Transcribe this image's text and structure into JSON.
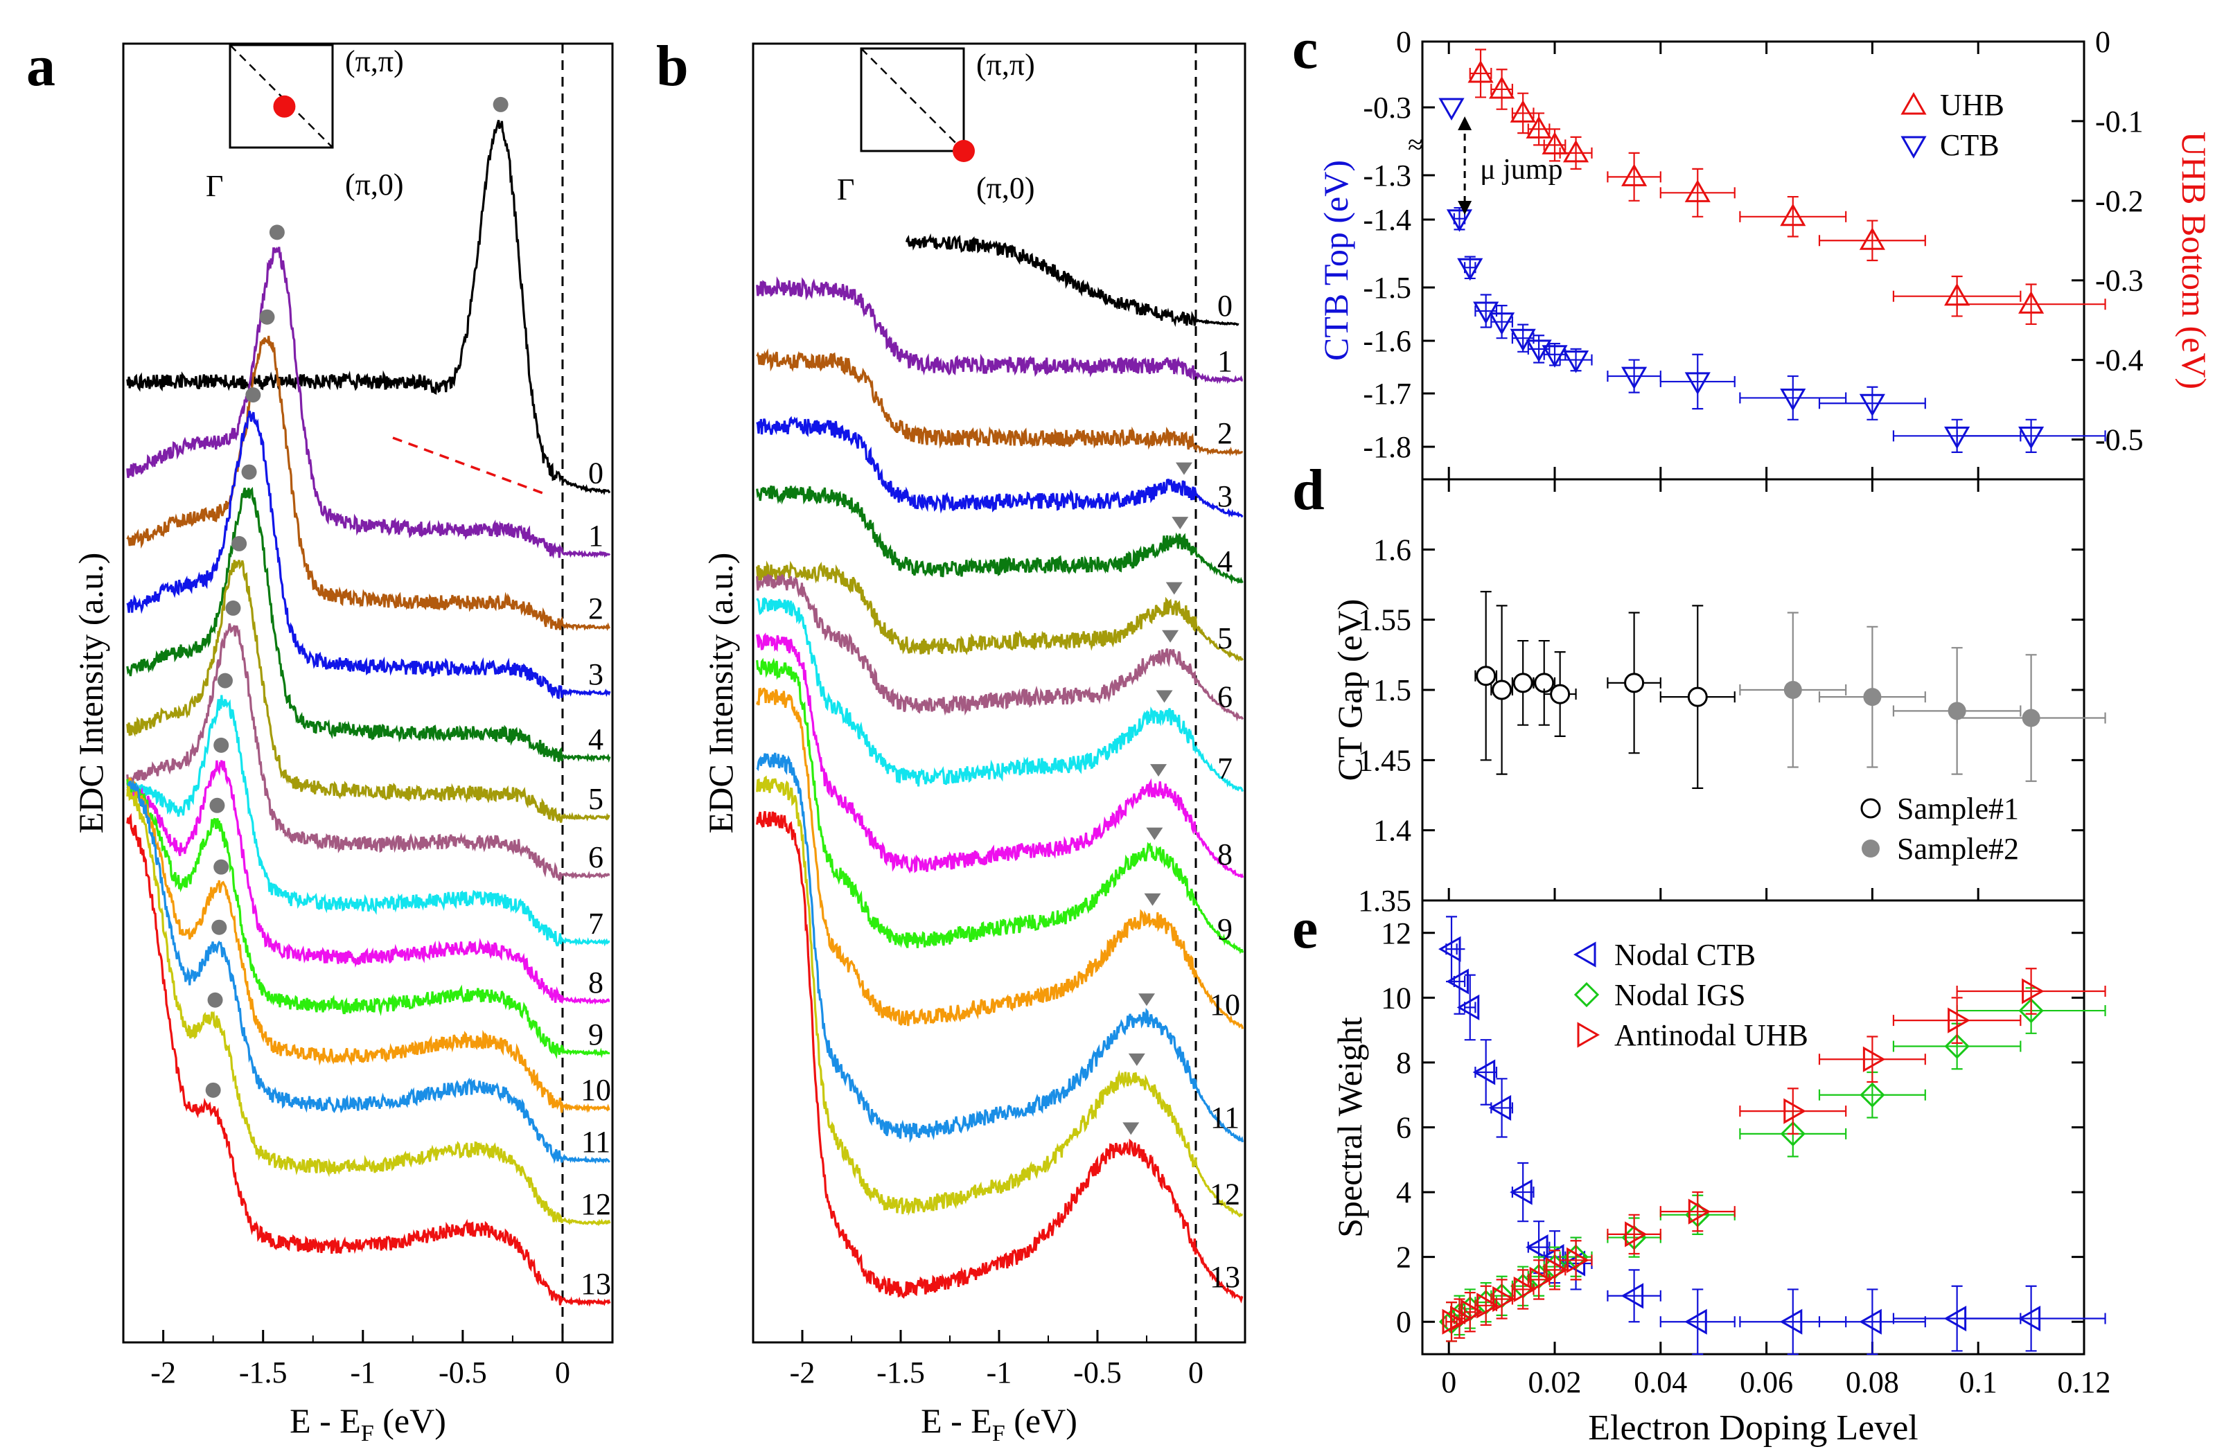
{
  "colors": {
    "edc": [
      "#000000",
      "#7f1fa8",
      "#b25a0e",
      "#1015e8",
      "#0a7a10",
      "#a49b0a",
      "#a45a82",
      "#12e4ee",
      "#ee10ee",
      "#2cee0c",
      "#f59a0a",
      "#1a8ee6",
      "#c8c80e",
      "#ee1010"
    ],
    "marker": "#777777",
    "ctb": "#1010d8",
    "uhb": "#e81010",
    "igs": "#18c818",
    "sample2": "#8a8a8a"
  },
  "chart_data": [
    {
      "id": "a",
      "panel_label": "a",
      "type": "line",
      "xlabel": "E - E",
      "xlabel_sub": "F",
      "xlabel_tail": " (eV)",
      "ylabel": "EDC Intensity (a.u.)",
      "xlim": [
        -2.2,
        0.25
      ],
      "x_ticks": [
        -2,
        -1.5,
        -1,
        -0.5,
        0
      ],
      "x_tick_labels": [
        "-2",
        "-1.5",
        "-1",
        "-0.5",
        "0"
      ],
      "fermi_line": 0,
      "inset": {
        "label_pipi": "(π,π)",
        "label_pi0": "(π,0)",
        "label_gamma": "Γ",
        "dot_position": "diagonal-center"
      },
      "curve_labels": [
        "0",
        "1",
        "2",
        "3",
        "4",
        "5",
        "6",
        "7",
        "8",
        "9",
        "10",
        "11",
        "12",
        "13"
      ],
      "peak_energies": [
        -0.31,
        -1.43,
        -1.48,
        -1.55,
        -1.57,
        -1.62,
        -1.65,
        -1.69,
        -1.71,
        -1.73,
        -1.71,
        -1.72,
        -1.74,
        -1.75
      ],
      "curves": [
        {
          "label": "0",
          "peak": -0.31,
          "baseline": 1.0,
          "hump": 0
        },
        {
          "label": "1",
          "peak": -1.43,
          "baseline": 1.0,
          "hump": 0
        },
        {
          "label": "2",
          "peak": -1.48,
          "baseline": 1.0,
          "hump": 0
        },
        {
          "label": "3",
          "peak": -1.55,
          "baseline": 1.0,
          "hump": 0
        },
        {
          "label": "4",
          "peak": -1.57,
          "baseline": 1.0,
          "hump": 0
        },
        {
          "label": "5",
          "peak": -1.62,
          "baseline": 1.0,
          "hump": 0
        },
        {
          "label": "6",
          "peak": -1.65,
          "baseline": 1.0,
          "hump": 0.2
        },
        {
          "label": "7",
          "peak": -1.69,
          "baseline": 1.0,
          "hump": 0.4
        },
        {
          "label": "8",
          "peak": -1.71,
          "baseline": 1.0,
          "hump": 0.6
        },
        {
          "label": "9",
          "peak": -1.73,
          "baseline": 1.0,
          "hump": 0.7
        },
        {
          "label": "10",
          "peak": -1.71,
          "baseline": 1.0,
          "hump": 0.9
        },
        {
          "label": "11",
          "peak": -1.72,
          "baseline": 1.0,
          "hump": 1.0
        },
        {
          "label": "12",
          "peak": -1.74,
          "baseline": 1.0,
          "hump": 1.0
        },
        {
          "label": "13",
          "peak": -1.75,
          "baseline": 1.0,
          "hump": 1.0
        }
      ]
    },
    {
      "id": "b",
      "panel_label": "b",
      "type": "line",
      "xlabel": "E - E",
      "xlabel_sub": "F",
      "xlabel_tail": " (eV)",
      "ylabel": "EDC Intensity (a.u.)",
      "xlim": [
        -2.25,
        0.25
      ],
      "x_ticks": [
        -2,
        -1.5,
        -1,
        -0.5,
        0
      ],
      "x_tick_labels": [
        "-2",
        "-1.5",
        "-1",
        "-0.5",
        "0"
      ],
      "fermi_line": 0,
      "inset": {
        "label_pipi": "(π,π)",
        "label_pi0": "(π,0)",
        "label_gamma": "Γ",
        "dot_position": "corner-pi0"
      },
      "curve_labels": [
        "0",
        "1",
        "2",
        "3",
        "4",
        "5",
        "6",
        "7",
        "8",
        "9",
        "10",
        "11",
        "12",
        "13"
      ],
      "triangle_energies": [
        null,
        null,
        null,
        -0.06,
        -0.08,
        -0.11,
        -0.13,
        -0.16,
        -0.19,
        -0.21,
        -0.22,
        -0.25,
        -0.3,
        -0.33
      ]
    },
    {
      "id": "c",
      "panel_label": "c",
      "type": "scatter",
      "xlim": [
        -0.005,
        0.12
      ],
      "ylabel": "CTB Top (eV)",
      "ylabel_right": "UHB Bottom (eV)",
      "left_tick_labels": [
        "0",
        "-0.3",
        "-1.3",
        "-1.4",
        "-1.5",
        "-1.6",
        "-1.7",
        "-1.8"
      ],
      "right_ylim": [
        -0.55,
        0
      ],
      "right_ticks": [
        0,
        -0.1,
        -0.2,
        -0.3,
        -0.4,
        -0.5
      ],
      "right_tick_labels": [
        "0",
        "-0.1",
        "-0.2",
        "-0.3",
        "-0.4",
        "-0.5"
      ],
      "annotation": "μ jump",
      "break_mark": "≈",
      "legend_position": "top-right",
      "series": [
        {
          "name": "UHB",
          "axis": "right",
          "marker": "triangle-up",
          "color": "#e81010",
          "x": [
            0.006,
            0.01,
            0.014,
            0.017,
            0.02,
            0.024,
            0.035,
            0.047,
            0.065,
            0.08,
            0.096,
            0.11
          ],
          "y": [
            -0.04,
            -0.06,
            -0.09,
            -0.11,
            -0.13,
            -0.14,
            -0.17,
            -0.19,
            -0.22,
            -0.25,
            -0.32,
            -0.33
          ],
          "xerr": [
            0.002,
            0.002,
            0.002,
            0.002,
            0.002,
            0.003,
            0.005,
            0.007,
            0.01,
            0.01,
            0.012,
            0.014
          ],
          "yerr": [
            0.03,
            0.025,
            0.025,
            0.02,
            0.02,
            0.02,
            0.03,
            0.03,
            0.025,
            0.025,
            0.025,
            0.025
          ]
        },
        {
          "name": "CTB",
          "axis": "left",
          "marker": "triangle-down",
          "color": "#1010d8",
          "x": [
            0.0005,
            0.002,
            0.004,
            0.007,
            0.01,
            0.014,
            0.017,
            0.02,
            0.024,
            0.035,
            0.047,
            0.065,
            0.08,
            0.096,
            0.11
          ],
          "y": [
            -0.3,
            -1.38,
            -1.47,
            -1.55,
            -1.57,
            -1.6,
            -1.62,
            -1.63,
            -1.64,
            -1.67,
            -1.68,
            -1.71,
            -1.72,
            -1.78,
            -1.78
          ],
          "xerr": [
            0,
            0.001,
            0.001,
            0.002,
            0.002,
            0.002,
            0.002,
            0.002,
            0.003,
            0.005,
            0.007,
            0.01,
            0.01,
            0.012,
            0.014
          ],
          "yerr": [
            0,
            0.02,
            0.02,
            0.03,
            0.03,
            0.025,
            0.025,
            0.02,
            0.02,
            0.03,
            0.05,
            0.04,
            0.03,
            0.03,
            0.03
          ]
        }
      ]
    },
    {
      "id": "d",
      "panel_label": "d",
      "type": "scatter",
      "xlim": [
        -0.005,
        0.12
      ],
      "ylim": [
        1.35,
        1.65
      ],
      "ylabel": "CT Gap (eV)",
      "y_ticks": [
        1.35,
        1.4,
        1.45,
        1.5,
        1.55,
        1.6
      ],
      "y_tick_labels": [
        "1.35",
        "1.4",
        "1.45",
        "1.5",
        "1.55",
        "1.6"
      ],
      "legend_position": "bottom-right",
      "series": [
        {
          "name": "Sample#1",
          "marker": "circle-open",
          "color": "#000000",
          "x": [
            0.007,
            0.01,
            0.014,
            0.018,
            0.021,
            0.035,
            0.047
          ],
          "y": [
            1.51,
            1.5,
            1.505,
            1.505,
            1.497,
            1.505,
            1.495
          ],
          "xerr": [
            0.002,
            0.002,
            0.002,
            0.002,
            0.003,
            0.005,
            0.007
          ],
          "yerr": [
            0.06,
            0.06,
            0.03,
            0.03,
            0.03,
            0.05,
            0.065
          ]
        },
        {
          "name": "Sample#2",
          "marker": "circle-filled",
          "color": "#8a8a8a",
          "x": [
            0.065,
            0.08,
            0.096,
            0.11
          ],
          "y": [
            1.5,
            1.495,
            1.485,
            1.48
          ],
          "xerr": [
            0.01,
            0.01,
            0.012,
            0.014
          ],
          "yerr": [
            0.055,
            0.05,
            0.045,
            0.045
          ]
        }
      ]
    },
    {
      "id": "e",
      "panel_label": "e",
      "type": "scatter",
      "xlim": [
        -0.005,
        0.12
      ],
      "ylim": [
        -1,
        13
      ],
      "xlabel": "Electron Doping Level",
      "ylabel": "Spectral Weight",
      "x_ticks": [
        0,
        0.02,
        0.04,
        0.06,
        0.08,
        0.1,
        0.12
      ],
      "x_tick_labels": [
        "0",
        "0.02",
        "0.04",
        "0.06",
        "0.08",
        "0.1",
        "0.12"
      ],
      "y_ticks": [
        0,
        2,
        4,
        6,
        8,
        10,
        12
      ],
      "y_tick_labels": [
        "0",
        "2",
        "4",
        "6",
        "8",
        "10",
        "12"
      ],
      "legend_position": "top-left",
      "series": [
        {
          "name": "Nodal CTB",
          "marker": "triangle-left",
          "color": "#1010d8",
          "x": [
            0.0005,
            0.002,
            0.004,
            0.007,
            0.01,
            0.014,
            0.017,
            0.02,
            0.024,
            0.035,
            0.047,
            0.065,
            0.08,
            0.096,
            0.11
          ],
          "y": [
            11.5,
            10.5,
            9.7,
            7.7,
            6.6,
            4.0,
            2.3,
            2.0,
            1.8,
            0.8,
            0.0,
            0.0,
            0.0,
            0.1,
            0.1
          ],
          "xerr": [
            0.001,
            0.001,
            0.001,
            0.002,
            0.002,
            0.002,
            0.002,
            0.002,
            0.003,
            0.005,
            0.007,
            0.01,
            0.01,
            0.012,
            0.014
          ],
          "yerr": [
            1.0,
            1.0,
            1.0,
            1.0,
            0.9,
            0.9,
            0.8,
            0.8,
            0.8,
            0.8,
            1.0,
            1.0,
            1.0,
            1.0,
            1.0
          ]
        },
        {
          "name": "Nodal IGS",
          "marker": "diamond",
          "color": "#18c818",
          "x": [
            0.0005,
            0.002,
            0.004,
            0.007,
            0.01,
            0.014,
            0.017,
            0.02,
            0.024,
            0.035,
            0.047,
            0.065,
            0.08,
            0.096,
            0.11
          ],
          "y": [
            0.0,
            0.2,
            0.4,
            0.6,
            0.8,
            1.1,
            1.4,
            1.7,
            2.0,
            2.6,
            3.3,
            5.8,
            7.0,
            8.5,
            9.6
          ],
          "xerr": [
            0.001,
            0.001,
            0.001,
            0.002,
            0.002,
            0.002,
            0.002,
            0.002,
            0.003,
            0.005,
            0.007,
            0.01,
            0.01,
            0.012,
            0.014
          ],
          "yerr": [
            0.6,
            0.6,
            0.6,
            0.6,
            0.6,
            0.6,
            0.6,
            0.6,
            0.6,
            0.6,
            0.6,
            0.7,
            0.7,
            0.7,
            0.7
          ]
        },
        {
          "name": "Antinodal UHB",
          "marker": "triangle-right",
          "color": "#e81010",
          "x": [
            0.0005,
            0.002,
            0.004,
            0.007,
            0.01,
            0.014,
            0.017,
            0.02,
            0.024,
            0.035,
            0.047,
            0.065,
            0.08,
            0.096,
            0.11
          ],
          "y": [
            0.0,
            0.1,
            0.3,
            0.5,
            0.7,
            1.0,
            1.3,
            1.6,
            1.9,
            2.7,
            3.4,
            6.5,
            8.1,
            9.3,
            10.2
          ],
          "xerr": [
            0.001,
            0.001,
            0.001,
            0.002,
            0.002,
            0.002,
            0.002,
            0.002,
            0.003,
            0.005,
            0.007,
            0.01,
            0.01,
            0.012,
            0.014
          ],
          "yerr": [
            0.6,
            0.6,
            0.6,
            0.6,
            0.6,
            0.6,
            0.6,
            0.6,
            0.6,
            0.6,
            0.6,
            0.7,
            0.7,
            0.7,
            0.7
          ]
        }
      ]
    }
  ]
}
